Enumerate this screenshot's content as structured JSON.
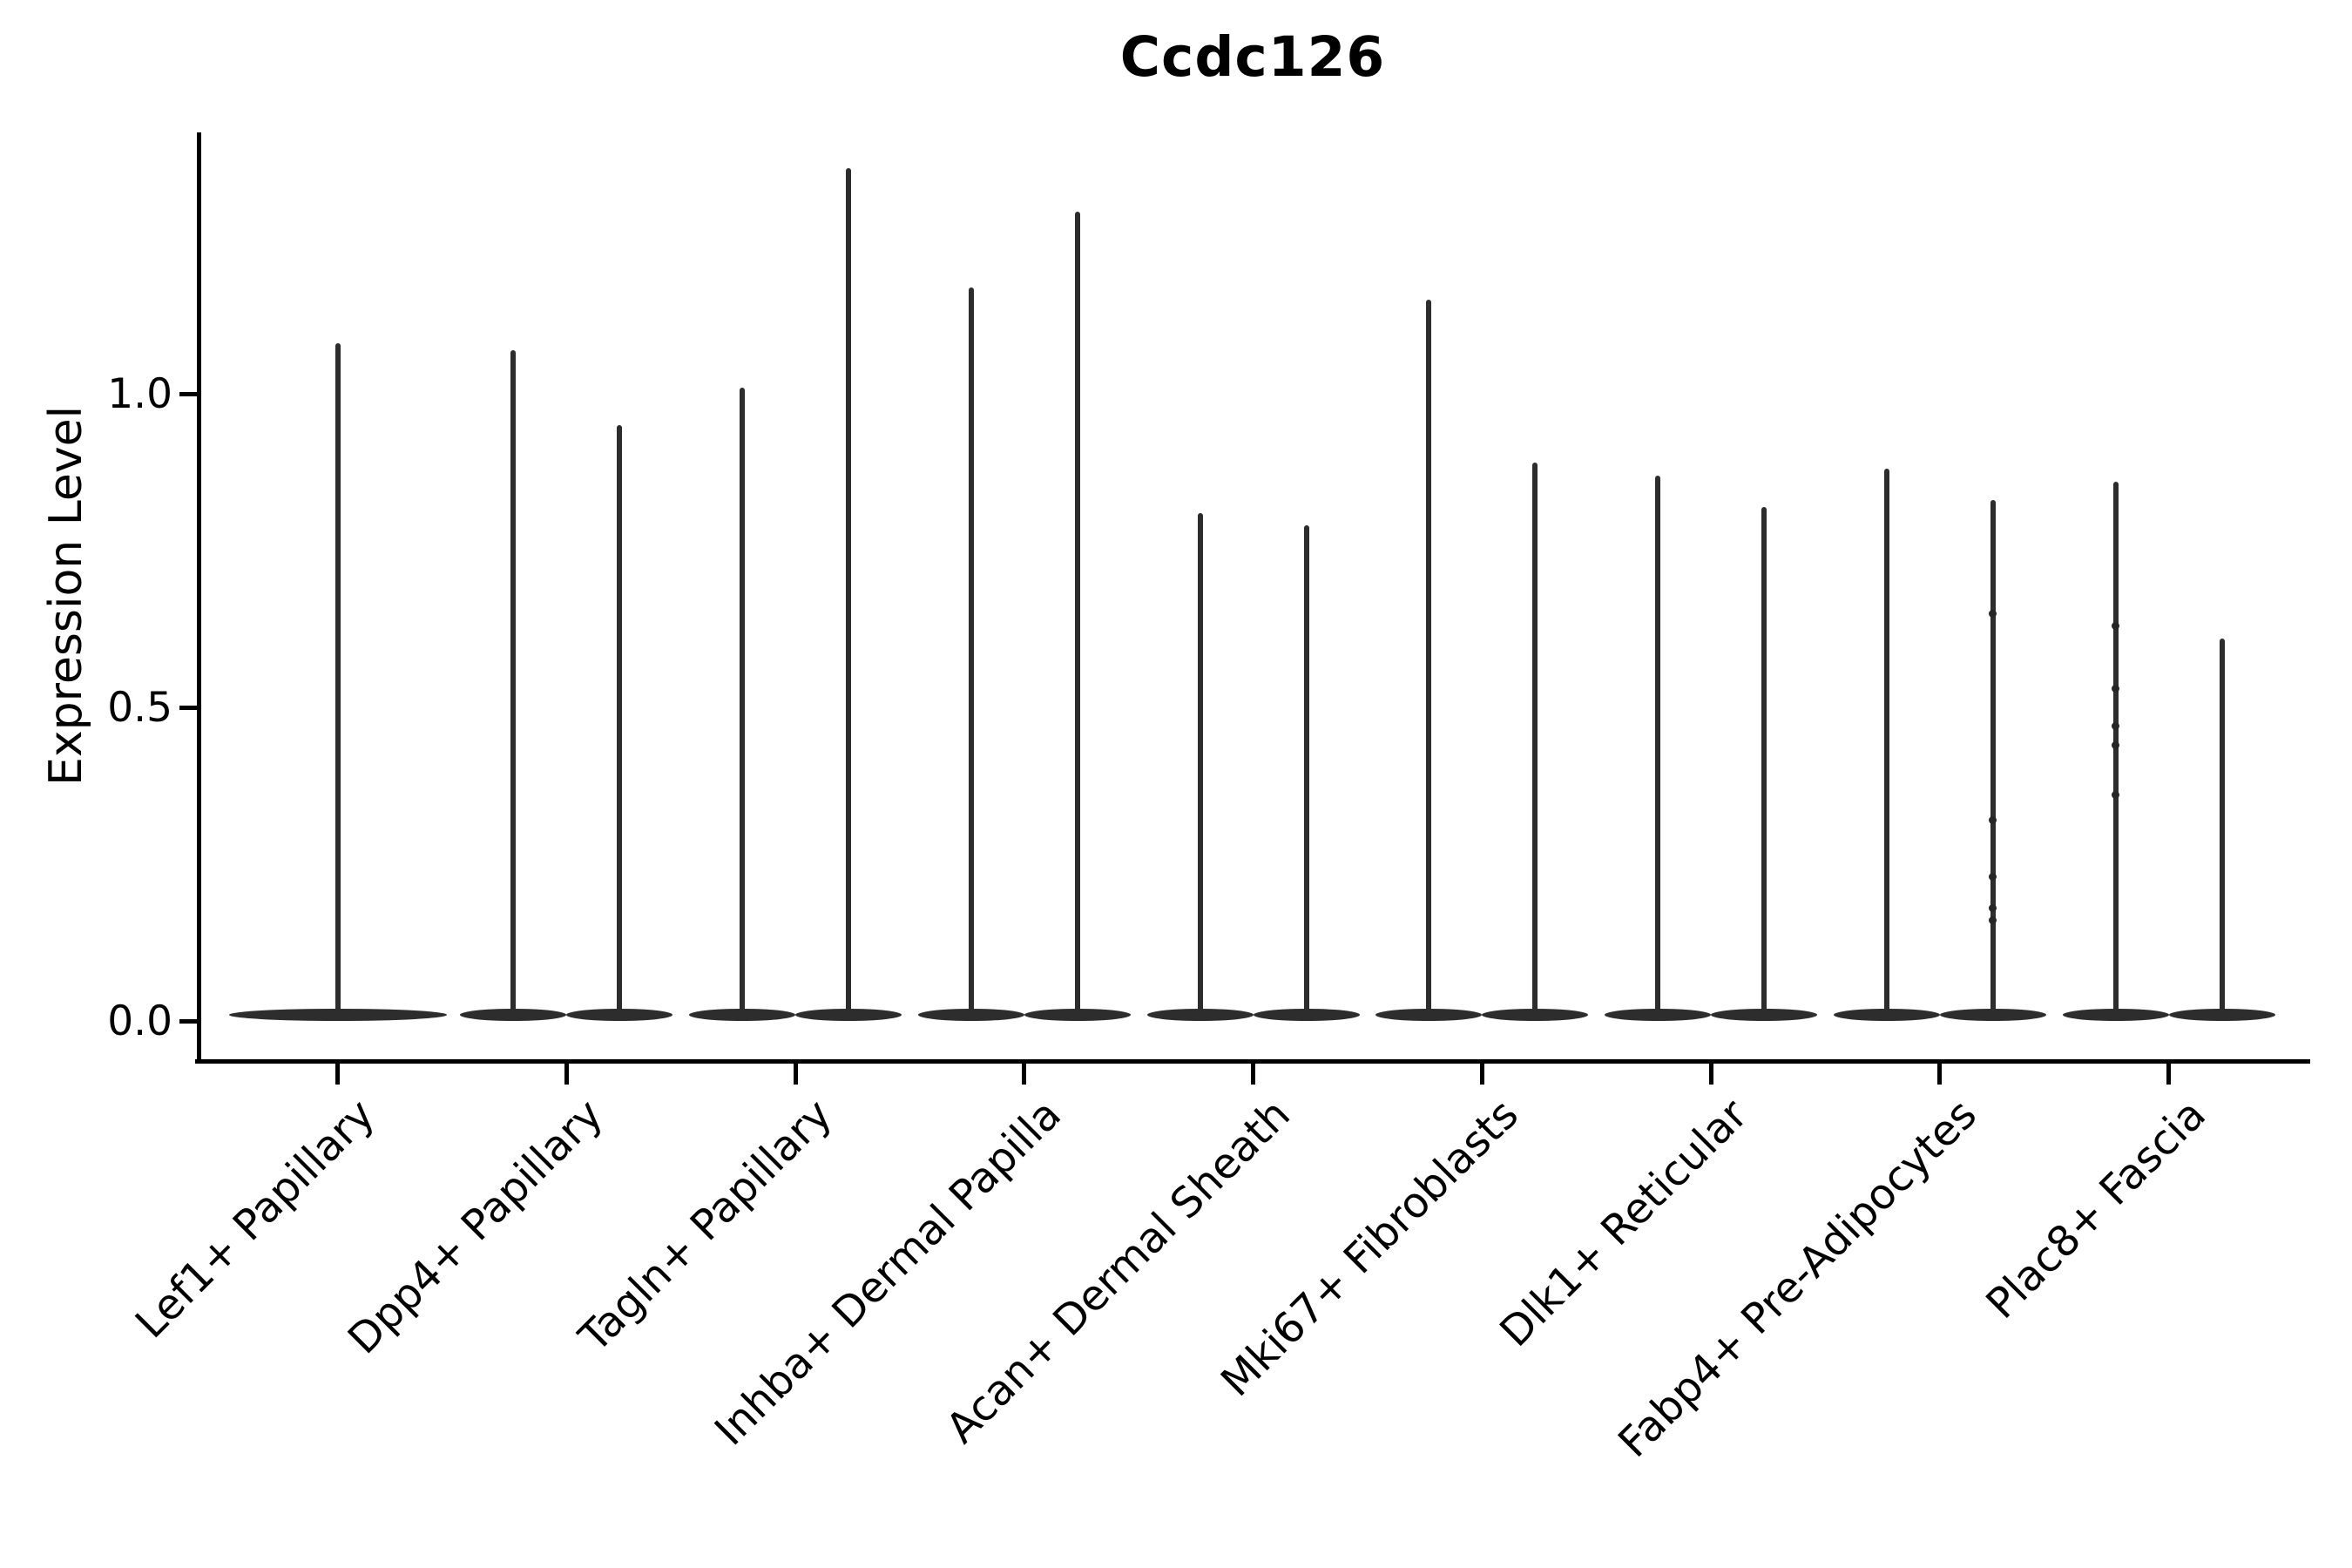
{
  "figure": {
    "title": "Ccdc126"
  },
  "axes": {
    "ylabel": "Expression Level",
    "ytick_labels": [
      "0.0",
      "0.5",
      "1.0"
    ]
  },
  "chart_data": {
    "type": "violin",
    "title": "Ccdc126",
    "xlabel": "",
    "ylabel": "Expression Level",
    "yticks": [
      0.0,
      0.5,
      1.0
    ],
    "ytick_labels": [
      "0.0",
      "0.5",
      "1.0"
    ],
    "ylim": [
      -0.06,
      1.42
    ],
    "grid": false,
    "legend": "none",
    "background": "#ffffff",
    "violin_color": "#2d2d2d",
    "axis_color": "#000000",
    "categories": [
      "Lef1+ Papillary",
      "Dpp4+ Papillary",
      "Tagln+ Papillary",
      "Inhba+ Dermal Papilla",
      "Acan+ Dermal Sheath",
      "Mki67+ Fibroblasts",
      "Dlk1+ Reticular",
      "Fabp4+ Pre-Adipocytes",
      "Plac8+ Fascia"
    ],
    "description": "Violin plot of Ccdc126 expression; most cells at 0 so violins collapse to a wide flat base at 0 with a thin spike up to the maximum expression value.",
    "violins": [
      {
        "category": "Lef1+ Papillary",
        "spikes": [
          {
            "offset": 0,
            "half_width": 125,
            "max": 1.08,
            "points": []
          }
        ]
      },
      {
        "category": "Dpp4+ Papillary",
        "spikes": [
          {
            "offset": -61,
            "half_width": 61,
            "max": 1.07,
            "points": []
          },
          {
            "offset": 61,
            "half_width": 61,
            "max": 0.95,
            "points": []
          }
        ]
      },
      {
        "category": "Tagln+ Papillary",
        "spikes": [
          {
            "offset": -61,
            "half_width": 61,
            "max": 1.01,
            "points": []
          },
          {
            "offset": 61,
            "half_width": 61,
            "max": 1.36,
            "points": []
          }
        ]
      },
      {
        "category": "Inhba+ Dermal Papilla",
        "spikes": [
          {
            "offset": -61,
            "half_width": 61,
            "max": 1.17,
            "points": []
          },
          {
            "offset": 61,
            "half_width": 61,
            "max": 1.29,
            "points": []
          }
        ]
      },
      {
        "category": "Acan+ Dermal Sheath",
        "spikes": [
          {
            "offset": -61,
            "half_width": 61,
            "max": 0.81,
            "points": []
          },
          {
            "offset": 61,
            "half_width": 61,
            "max": 0.79,
            "points": []
          }
        ]
      },
      {
        "category": "Mki67+ Fibroblasts",
        "spikes": [
          {
            "offset": -61,
            "half_width": 61,
            "max": 1.15,
            "points": []
          },
          {
            "offset": 61,
            "half_width": 61,
            "max": 0.89,
            "points": []
          }
        ]
      },
      {
        "category": "Dlk1+ Reticular",
        "spikes": [
          {
            "offset": -61,
            "half_width": 61,
            "max": 0.87,
            "points": []
          },
          {
            "offset": 61,
            "half_width": 61,
            "max": 0.82,
            "points": []
          }
        ]
      },
      {
        "category": "Fabp4+ Pre-Adipocytes",
        "spikes": [
          {
            "offset": -61,
            "half_width": 61,
            "max": 0.88,
            "points": []
          },
          {
            "offset": 61,
            "half_width": 61,
            "max": 0.83,
            "points": [
              0.65,
              0.32,
              0.23,
              0.18,
              0.16
            ]
          }
        ]
      },
      {
        "category": "Plac8+ Fascia",
        "spikes": [
          {
            "offset": -61,
            "half_width": 61,
            "max": 0.86,
            "points": [
              0.63,
              0.53,
              0.47,
              0.44,
              0.36
            ]
          },
          {
            "offset": 61,
            "half_width": 61,
            "max": 0.61,
            "points": []
          }
        ]
      }
    ]
  }
}
